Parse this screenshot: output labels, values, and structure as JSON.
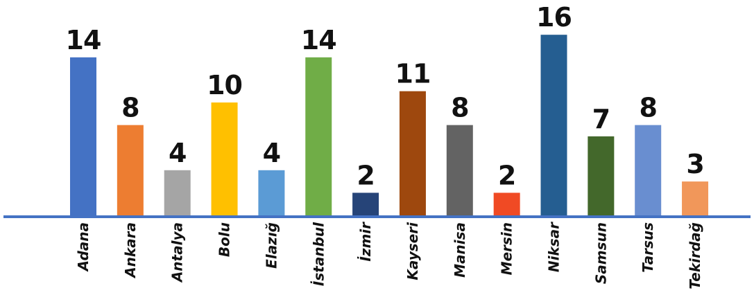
{
  "chart_data": {
    "type": "bar",
    "categories": [
      "Adana",
      "Ankara",
      "Antalya",
      "Bolu",
      "Elazığ",
      "İstanbul",
      "İzmir",
      "Kayseri",
      "Manisa",
      "Mersin",
      "Niksar",
      "Samsun",
      "Tarsus",
      "Tekirdağ"
    ],
    "values": [
      14,
      8,
      4,
      10,
      4,
      14,
      2,
      11,
      8,
      2,
      16,
      7,
      8,
      3
    ],
    "colors": [
      "#4472c4",
      "#ed7d31",
      "#a5a5a5",
      "#ffc000",
      "#5b9bd5",
      "#70ad47",
      "#264478",
      "#9e480e",
      "#636363",
      "#f04a24",
      "#255e91",
      "#43682b",
      "#698ed0",
      "#f1975a"
    ],
    "title": "",
    "xlabel": "",
    "ylabel": "",
    "ylim": [
      0,
      16
    ],
    "grid": false,
    "legend": "none",
    "axis_color": "#4472c4",
    "data_labels": true
  }
}
